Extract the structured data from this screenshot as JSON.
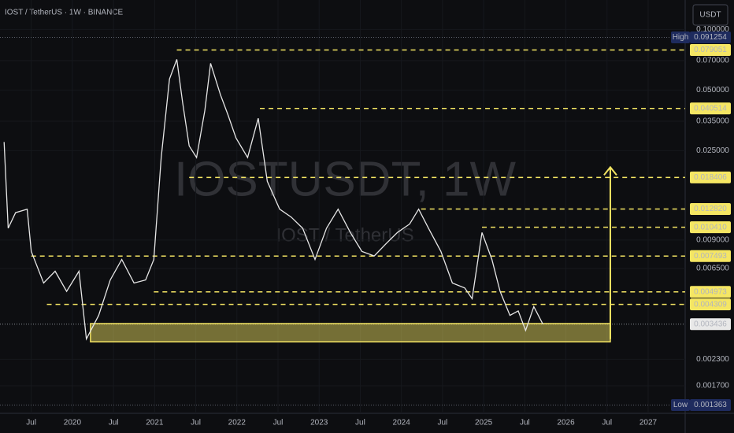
{
  "chart_data": {
    "type": "line",
    "title": "IOST / TetherUS · 1W · BINANCE",
    "watermark": "IOSTUSDT, 1W",
    "watermark_subtitle": "IOST / TetherUS",
    "currency": "USDT",
    "log_scale": true,
    "color": "#e6e6e6",
    "x": [
      2019.17,
      2019.22,
      2019.31,
      2019.45,
      2019.5,
      2019.65,
      2019.79,
      2019.93,
      2020.08,
      2020.17,
      2020.32,
      2020.46,
      2020.6,
      2020.75,
      2020.89,
      2020.99,
      2021.08,
      2021.18,
      2021.27,
      2021.34,
      2021.42,
      2021.51,
      2021.61,
      2021.68,
      2021.8,
      2021.89,
      2021.99,
      2022.13,
      2022.26,
      2022.37,
      2022.52,
      2022.66,
      2022.8,
      2022.95,
      2023.09,
      2023.23,
      2023.38,
      2023.52,
      2023.67,
      2023.81,
      2023.95,
      2024.1,
      2024.21,
      2024.33,
      2024.48,
      2024.62,
      2024.77,
      2024.86,
      2024.98,
      2025.1,
      2025.2,
      2025.32,
      2025.42,
      2025.51,
      2025.61,
      2025.72
    ],
    "values": [
      0.0276,
      0.0103,
      0.0123,
      0.0128,
      0.0079,
      0.0055,
      0.0063,
      0.005,
      0.0063,
      0.0029,
      0.0038,
      0.0057,
      0.0072,
      0.0055,
      0.0057,
      0.0072,
      0.0231,
      0.0567,
      0.071,
      0.0433,
      0.0264,
      0.0231,
      0.0396,
      0.0679,
      0.0474,
      0.0378,
      0.0289,
      0.0231,
      0.0362,
      0.0176,
      0.0128,
      0.0117,
      0.0103,
      0.0072,
      0.0103,
      0.0128,
      0.0098,
      0.0079,
      0.0075,
      0.0086,
      0.0098,
      0.0108,
      0.0128,
      0.0103,
      0.0079,
      0.0055,
      0.0052,
      0.0046,
      0.0098,
      0.0072,
      0.005,
      0.0038,
      0.004,
      0.0032,
      0.0042,
      0.00344
    ],
    "xlim": [
      2019.12,
      2027.45
    ],
    "ylim": [
      0.00124,
      0.14
    ],
    "xticks": [
      {
        "value": 2019.5,
        "label": "Jul"
      },
      2020,
      {
        "value": 2020.5,
        "label": "Jul"
      },
      2021,
      {
        "value": 2021.5,
        "label": "Jul"
      },
      2022,
      {
        "value": 2022.5,
        "label": "Jul"
      },
      2023,
      {
        "value": 2023.5,
        "label": "Jul"
      },
      2024,
      {
        "value": 2024.5,
        "label": "Jul"
      },
      2025,
      {
        "value": 2025.5,
        "label": "Jul"
      },
      2026,
      {
        "value": 2026.5,
        "label": "Jul"
      },
      2027
    ],
    "yticks": [
      {
        "value": 0.1,
        "label": "0.100000"
      },
      {
        "value": 0.07,
        "label": "0.070000"
      },
      {
        "value": 0.05,
        "label": "0.050000"
      },
      {
        "value": 0.035,
        "label": "0.035000"
      },
      {
        "value": 0.025,
        "label": "0.025000"
      },
      {
        "value": 0.009,
        "label": "0.009000"
      },
      {
        "value": 0.0065,
        "label": "0.006500"
      },
      {
        "value": 0.0023,
        "label": "0.002300"
      },
      {
        "value": 0.0017,
        "label": "0.001700"
      }
    ],
    "levels": [
      {
        "value": 0.079051,
        "label": "0.079051",
        "start": 2021.27
      },
      {
        "value": 0.040514,
        "label": "0.040514",
        "start": 2022.28
      },
      {
        "value": 0.018406,
        "label": "0.018406",
        "start": 2021.42
      },
      {
        "value": 0.01282,
        "label": "0.012820",
        "start": 2024.24
      },
      {
        "value": 0.01041,
        "label": "0.010410",
        "start": 2024.98
      },
      {
        "value": 0.007493,
        "label": "0.007493",
        "start": 2019.5
      },
      {
        "value": 0.004973,
        "label": "0.004973",
        "start": 2020.99
      },
      {
        "value": 0.004309,
        "label": "0.004309",
        "start": 2019.69
      }
    ],
    "level_color": "#f5e663",
    "zone": {
      "start": 2020.22,
      "end": 2026.54,
      "low": 0.00281,
      "high": 0.00346
    },
    "arrow": {
      "x": 2026.54,
      "from": 0.0029,
      "to": 0.0207
    },
    "high": {
      "tag": "High",
      "value": 0.091254
    },
    "low": {
      "tag": "Low",
      "value": 0.001363
    },
    "last_price": {
      "value": 0.003436,
      "label": "0.003436"
    }
  }
}
